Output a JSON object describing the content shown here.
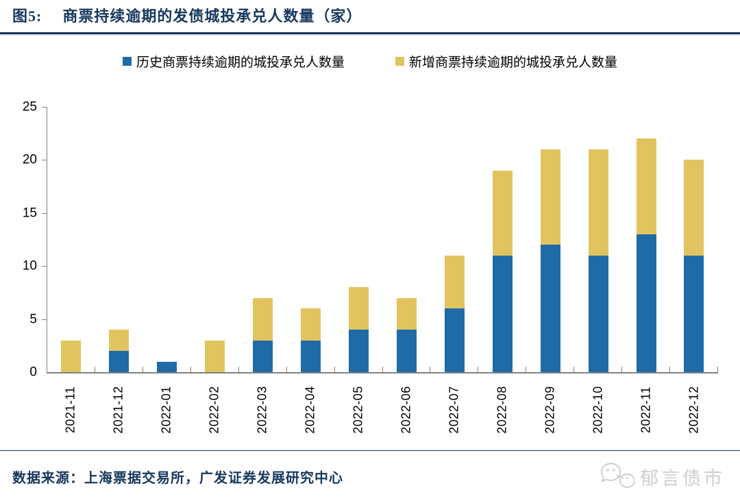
{
  "header": {
    "figure_label": "图5:",
    "title": "商票持续逾期的发债城投承兑人数量（家）"
  },
  "chart_data": {
    "type": "bar",
    "stacked": true,
    "title": "商票持续逾期的发债城投承兑人数量（家）",
    "categories": [
      "2021-11",
      "2021-12",
      "2022-01",
      "2022-02",
      "2022-03",
      "2022-04",
      "2022-05",
      "2022-06",
      "2022-07",
      "2022-08",
      "2022-09",
      "2022-10",
      "2022-11",
      "2022-12"
    ],
    "series": [
      {
        "name": "历史商票持续逾期的城投承兑人数量",
        "color": "#1F6BA8",
        "values": [
          0,
          2,
          1,
          0,
          3,
          3,
          4,
          4,
          6,
          11,
          12,
          11,
          13,
          11
        ]
      },
      {
        "name": "新增商票持续逾期的城投承兑人数量",
        "color": "#E1C45F",
        "values": [
          3,
          2,
          0,
          3,
          4,
          3,
          4,
          3,
          5,
          8,
          9,
          10,
          9,
          9
        ]
      }
    ],
    "totals": [
      3,
      4,
      1,
      3,
      7,
      6,
      8,
      7,
      11,
      19,
      21,
      21,
      22,
      20
    ],
    "xlabel": "",
    "ylabel": "",
    "ylim": [
      0,
      25
    ],
    "yticks": [
      0,
      5,
      10,
      15,
      20,
      25
    ],
    "grid": false,
    "legend_position": "top-center"
  },
  "footer": {
    "source": "数据来源：上海票据交易所，广发证券发展研究中心",
    "watermark": "郁言债市"
  },
  "colors": {
    "navy": "#17375E",
    "bar_blue": "#1F6BA8",
    "bar_yellow": "#E1C45F",
    "axis_gray": "#808080",
    "watermark_gray": "#D2D2D2"
  }
}
